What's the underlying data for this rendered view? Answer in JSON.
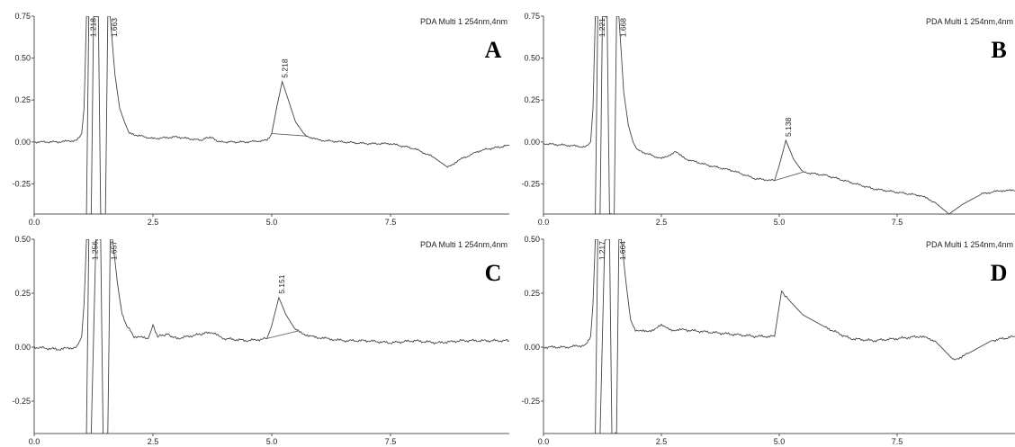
{
  "chart_data": [
    {
      "type": "line",
      "panel": "A",
      "detector_label": "PDA Multi 1 254nm,4nm",
      "xlim": [
        0,
        10
      ],
      "ylim": [
        -0.43,
        0.75
      ],
      "x_ticks": [
        0.0,
        2.5,
        5.0,
        7.5
      ],
      "x_tick_labels": [
        "0.0",
        "2.5",
        "5.0",
        "7.5"
      ],
      "y_ticks": [
        0.75,
        0.5,
        0.25,
        0.0,
        -0.25
      ],
      "y_tick_labels": [
        "0.75",
        "0.50",
        "0.25",
        "0.00",
        "-0.25"
      ],
      "peaks": [
        {
          "rt": 1.218,
          "label": "1.218"
        },
        {
          "rt": 1.663,
          "label": "1.663"
        },
        {
          "rt": 5.218,
          "label": "5.218",
          "height": 0.36,
          "base_from": 5.0,
          "base_to": 5.75
        }
      ],
      "series": [
        {
          "values": [
            [
              0,
              0
            ],
            [
              0.5,
              0
            ],
            [
              0.9,
              0.01
            ],
            [
              1.0,
              0.05
            ],
            [
              1.05,
              0.2
            ],
            [
              1.1,
              0.75
            ],
            [
              1.15,
              0.75
            ],
            [
              1.1,
              -0.43
            ],
            [
              1.2,
              -0.43
            ],
            [
              1.25,
              0.75
            ],
            [
              1.35,
              0.75
            ],
            [
              1.4,
              -0.43
            ],
            [
              1.5,
              -0.43
            ],
            [
              1.55,
              0.75
            ],
            [
              1.6,
              0.75
            ],
            [
              1.7,
              0.4
            ],
            [
              1.8,
              0.2
            ],
            [
              1.9,
              0.12
            ],
            [
              2.0,
              0.05
            ],
            [
              2.5,
              0.02
            ],
            [
              3.0,
              0.03
            ],
            [
              3.5,
              0.01
            ],
            [
              3.7,
              0.03
            ],
            [
              3.9,
              0
            ],
            [
              4.5,
              0
            ],
            [
              4.9,
              0.01
            ],
            [
              5.0,
              0.05
            ],
            [
              5.1,
              0.2
            ],
            [
              5.22,
              0.36
            ],
            [
              5.35,
              0.25
            ],
            [
              5.5,
              0.12
            ],
            [
              5.7,
              0.04
            ],
            [
              6.0,
              0.01
            ],
            [
              6.5,
              0
            ],
            [
              7.0,
              -0.01
            ],
            [
              7.5,
              -0.01
            ],
            [
              8.0,
              -0.04
            ],
            [
              8.4,
              -0.09
            ],
            [
              8.7,
              -0.15
            ],
            [
              9.0,
              -0.1
            ],
            [
              9.4,
              -0.05
            ],
            [
              10.0,
              -0.02
            ]
          ]
        }
      ]
    },
    {
      "type": "line",
      "panel": "B",
      "detector_label": "PDA Multi 1 254nm,4nm",
      "xlim": [
        0,
        10
      ],
      "ylim": [
        -0.43,
        0.75
      ],
      "x_ticks": [
        0.0,
        2.5,
        5.0,
        7.5
      ],
      "x_tick_labels": [
        "0.0",
        "2.5",
        "5.0",
        "7.5"
      ],
      "y_ticks": [
        0.75,
        0.5,
        0.25,
        0.0,
        -0.25
      ],
      "y_tick_labels": [
        "0.75",
        "0.50",
        "0.25",
        "0.00",
        "-0.25"
      ],
      "peaks": [
        {
          "rt": 1.221,
          "label": "1.221"
        },
        {
          "rt": 1.668,
          "label": "1.668"
        },
        {
          "rt": 5.138,
          "label": "5.138",
          "height": 0.01,
          "base_from": 4.9,
          "base_to": 5.5
        }
      ],
      "series": [
        {
          "values": [
            [
              0,
              -0.01
            ],
            [
              0.5,
              -0.02
            ],
            [
              0.9,
              -0.03
            ],
            [
              1.0,
              0.0
            ],
            [
              1.05,
              0.2
            ],
            [
              1.1,
              0.75
            ],
            [
              1.15,
              0.75
            ],
            [
              1.1,
              -0.43
            ],
            [
              1.2,
              -0.43
            ],
            [
              1.25,
              0.75
            ],
            [
              1.35,
              0.75
            ],
            [
              1.4,
              -0.43
            ],
            [
              1.5,
              -0.43
            ],
            [
              1.55,
              0.75
            ],
            [
              1.6,
              0.75
            ],
            [
              1.7,
              0.3
            ],
            [
              1.8,
              0.1
            ],
            [
              1.9,
              0.0
            ],
            [
              2.0,
              -0.05
            ],
            [
              2.5,
              -0.1
            ],
            [
              2.8,
              -0.06
            ],
            [
              3.0,
              -0.1
            ],
            [
              3.5,
              -0.14
            ],
            [
              4.0,
              -0.17
            ],
            [
              4.5,
              -0.22
            ],
            [
              4.9,
              -0.23
            ],
            [
              5.0,
              -0.14
            ],
            [
              5.14,
              0.01
            ],
            [
              5.3,
              -0.1
            ],
            [
              5.5,
              -0.18
            ],
            [
              6.0,
              -0.2
            ],
            [
              6.5,
              -0.24
            ],
            [
              7.0,
              -0.28
            ],
            [
              7.5,
              -0.3
            ],
            [
              8.0,
              -0.32
            ],
            [
              8.3,
              -0.36
            ],
            [
              8.6,
              -0.43
            ],
            [
              8.9,
              -0.37
            ],
            [
              9.3,
              -0.31
            ],
            [
              9.7,
              -0.29
            ],
            [
              10.0,
              -0.29
            ]
          ]
        }
      ]
    },
    {
      "type": "line",
      "panel": "C",
      "detector_label": "PDA Multi 1 254nm,4nm",
      "xlim": [
        0,
        10
      ],
      "ylim": [
        -0.4,
        0.5
      ],
      "x_ticks": [
        0.0,
        2.5,
        5.0,
        7.5
      ],
      "x_tick_labels": [
        "0.0",
        "2.5",
        "5.0",
        "7.5"
      ],
      "y_ticks": [
        0.5,
        0.25,
        0.0,
        -0.25
      ],
      "y_tick_labels": [
        "0.50",
        "0.25",
        "0.00",
        "-0.25"
      ],
      "peaks": [
        {
          "rt": 1.256,
          "label": "1.256"
        },
        {
          "rt": 1.657,
          "label": "1.657"
        },
        {
          "rt": 5.151,
          "label": "5.151",
          "height": 0.23,
          "base_from": 4.9,
          "base_to": 5.55
        }
      ],
      "series": [
        {
          "values": [
            [
              0,
              0
            ],
            [
              0.5,
              -0.01
            ],
            [
              0.9,
              0
            ],
            [
              1.0,
              0.05
            ],
            [
              1.05,
              0.2
            ],
            [
              1.1,
              0.5
            ],
            [
              1.15,
              0.5
            ],
            [
              1.1,
              -0.4
            ],
            [
              1.2,
              -0.4
            ],
            [
              1.3,
              0.5
            ],
            [
              1.4,
              0.5
            ],
            [
              1.45,
              -0.4
            ],
            [
              1.55,
              -0.4
            ],
            [
              1.6,
              0.5
            ],
            [
              1.65,
              0.5
            ],
            [
              1.75,
              0.3
            ],
            [
              1.85,
              0.15
            ],
            [
              1.95,
              0.1
            ],
            [
              2.1,
              0.05
            ],
            [
              2.4,
              0.04
            ],
            [
              2.5,
              0.1
            ],
            [
              2.6,
              0.05
            ],
            [
              2.8,
              0.06
            ],
            [
              3.0,
              0.04
            ],
            [
              3.5,
              0.06
            ],
            [
              3.7,
              0.07
            ],
            [
              4.0,
              0.04
            ],
            [
              4.5,
              0.03
            ],
            [
              4.9,
              0.04
            ],
            [
              5.0,
              0.1
            ],
            [
              5.15,
              0.23
            ],
            [
              5.3,
              0.15
            ],
            [
              5.5,
              0.08
            ],
            [
              5.8,
              0.05
            ],
            [
              6.5,
              0.03
            ],
            [
              7.0,
              0.03
            ],
            [
              7.5,
              0.02
            ],
            [
              8.0,
              0.03
            ],
            [
              8.5,
              0.02
            ],
            [
              9.0,
              0.03
            ],
            [
              10.0,
              0.03
            ]
          ]
        }
      ]
    },
    {
      "type": "line",
      "panel": "D",
      "detector_label": "PDA Multi 1 254nm,4nm",
      "xlim": [
        0,
        10
      ],
      "ylim": [
        -0.4,
        0.5
      ],
      "x_ticks": [
        0.0,
        2.5,
        5.0,
        7.5
      ],
      "x_tick_labels": [
        "0.0",
        "2.5",
        "5.0",
        "7.5"
      ],
      "y_ticks": [
        0.5,
        0.25,
        0.0,
        -0.25
      ],
      "y_tick_labels": [
        "0.50",
        "0.25",
        "0.00",
        "-0.25"
      ],
      "peaks": [
        {
          "rt": 1.217,
          "label": "1.217"
        },
        {
          "rt": 1.664,
          "label": "1.664"
        },
        {
          "rt": 5.05,
          "label": "",
          "height": 0.26
        }
      ],
      "series": [
        {
          "values": [
            [
              0,
              0
            ],
            [
              0.5,
              0
            ],
            [
              0.9,
              0.01
            ],
            [
              1.0,
              0.05
            ],
            [
              1.05,
              0.2
            ],
            [
              1.1,
              0.5
            ],
            [
              1.15,
              0.5
            ],
            [
              1.1,
              -0.4
            ],
            [
              1.2,
              -0.4
            ],
            [
              1.3,
              0.5
            ],
            [
              1.4,
              0.5
            ],
            [
              1.45,
              -0.4
            ],
            [
              1.55,
              -0.4
            ],
            [
              1.6,
              0.5
            ],
            [
              1.65,
              0.5
            ],
            [
              1.75,
              0.3
            ],
            [
              1.85,
              0.12
            ],
            [
              1.95,
              0.08
            ],
            [
              2.2,
              0.07
            ],
            [
              2.5,
              0.1
            ],
            [
              2.7,
              0.08
            ],
            [
              3.0,
              0.08
            ],
            [
              3.5,
              0.07
            ],
            [
              4.0,
              0.06
            ],
            [
              4.5,
              0.05
            ],
            [
              4.9,
              0.05
            ],
            [
              5.05,
              0.26
            ],
            [
              5.2,
              0.22
            ],
            [
              5.5,
              0.15
            ],
            [
              6.0,
              0.09
            ],
            [
              6.5,
              0.04
            ],
            [
              7.0,
              0.03
            ],
            [
              7.5,
              0.04
            ],
            [
              8.0,
              0.05
            ],
            [
              8.3,
              0.03
            ],
            [
              8.7,
              -0.06
            ],
            [
              9.0,
              -0.03
            ],
            [
              9.5,
              0.03
            ],
            [
              10.0,
              0.05
            ]
          ]
        }
      ]
    }
  ]
}
